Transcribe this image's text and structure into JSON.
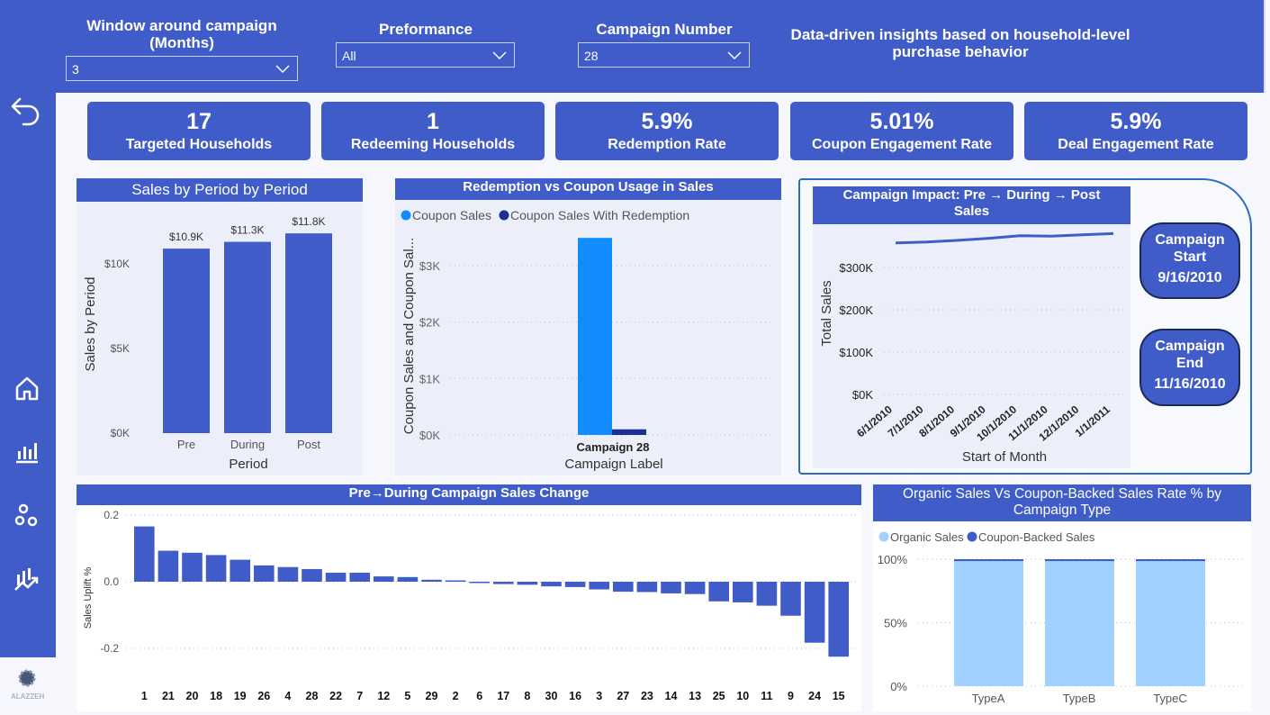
{
  "header": {
    "slicers": [
      {
        "label": "Window around campaign (Months)",
        "value": "3"
      },
      {
        "label": "Preformance",
        "value": "All"
      },
      {
        "label": "Campaign Number",
        "value": "28"
      }
    ],
    "tagline": "Data-driven insights based on household-level purchase behavior"
  },
  "sidebar": {
    "items": [
      {
        "icon": "back-arrow-icon"
      },
      {
        "icon": "home-icon"
      },
      {
        "icon": "bar-chart-icon"
      },
      {
        "icon": "circles-icon"
      },
      {
        "icon": "trend-chart-icon"
      }
    ],
    "logo_text": "ALAZZEH"
  },
  "kpis": [
    {
      "value": "17",
      "label": "Targeted Households"
    },
    {
      "value": "1",
      "label": "Redeeming Households"
    },
    {
      "value": "5.9%",
      "label": "Redemption Rate"
    },
    {
      "value": "5.01%",
      "label": "Coupon Engagement Rate"
    },
    {
      "value": "5.9%",
      "label": "Deal Engagement Rate"
    }
  ],
  "campaign_start": {
    "label": "Campaign Start",
    "date": "9/16/2010"
  },
  "campaign_end": {
    "label": "Campaign End",
    "date": "11/16/2010"
  },
  "colors": {
    "primary": "#405cc8",
    "panel": "#eceff9",
    "coupon": "#118dff",
    "redemption": "#1f2f99",
    "organic": "#a0d1ff"
  },
  "chart_data": [
    {
      "type": "bar",
      "title": "Sales by Period by Period",
      "xlabel": "Period",
      "ylabel": "Sales by Period",
      "categories": [
        "Pre",
        "During",
        "Post"
      ],
      "values": [
        10900,
        11300,
        11800
      ],
      "data_labels": [
        "$10.9K",
        "$11.3K",
        "$11.8K"
      ],
      "yticks": [
        "$0K",
        "$5K",
        "$10K"
      ],
      "ylim": [
        0,
        12500
      ]
    },
    {
      "type": "bar",
      "title": "Redemption vs Coupon Usage in Sales",
      "xlabel": "Campaign Label",
      "ylabel": "Coupon Sales and Coupon Sal...",
      "categories": [
        "Campaign 28"
      ],
      "series": [
        {
          "name": "Coupon Sales",
          "values": [
            3490
          ]
        },
        {
          "name": "Coupon Sales With Redemption",
          "values": [
            100
          ]
        }
      ],
      "yticks": [
        "$0K",
        "$1K",
        "$2K",
        "$3K"
      ],
      "ylim": [
        0,
        3800
      ],
      "legend": "top-left"
    },
    {
      "type": "line",
      "title": "Campaign Impact: Pre → During → Post Sales",
      "xlabel": "Start of Month",
      "ylabel": "Total Sales",
      "x": [
        "6/1/2010",
        "7/1/2010",
        "8/1/2010",
        "9/1/2010",
        "10/1/2010",
        "11/1/2010",
        "12/1/2010",
        "1/1/2011"
      ],
      "values": [
        358000,
        360000,
        364000,
        369000,
        375000,
        374000,
        377000,
        380000
      ],
      "yticks": [
        "$0K",
        "$100K",
        "$200K",
        "$300K"
      ],
      "ylim": [
        0,
        400000
      ]
    },
    {
      "type": "bar",
      "title": "Pre→During Campaign Sales Change",
      "ylabel": "Sales Uplift %",
      "categories": [
        "1",
        "21",
        "20",
        "18",
        "19",
        "26",
        "4",
        "28",
        "22",
        "7",
        "12",
        "5",
        "29",
        "2",
        "6",
        "17",
        "8",
        "30",
        "16",
        "3",
        "27",
        "23",
        "14",
        "13",
        "25",
        "10",
        "11",
        "9",
        "24",
        "15"
      ],
      "values": [
        0.166,
        0.093,
        0.087,
        0.08,
        0.066,
        0.049,
        0.044,
        0.038,
        0.027,
        0.027,
        0.016,
        0.014,
        0.006,
        0.004,
        -0.004,
        -0.007,
        -0.009,
        -0.014,
        -0.016,
        -0.023,
        -0.03,
        -0.031,
        -0.035,
        -0.037,
        -0.059,
        -0.062,
        -0.072,
        -0.102,
        -0.183,
        -0.225
      ],
      "yticks": [
        "-0.2",
        "0.0",
        "0.2"
      ],
      "ylim": [
        -0.2,
        0.2
      ]
    },
    {
      "type": "bar",
      "stacked": true,
      "title": "Organic Sales Vs Coupon-Backed Sales Rate % by Campaign Type",
      "categories": [
        "TypeA",
        "TypeB",
        "TypeC"
      ],
      "series": [
        {
          "name": "Organic Sales",
          "values": [
            98.5,
            98.5,
            98.5
          ]
        },
        {
          "name": "Coupon-Backed Sales",
          "values": [
            1.5,
            1.5,
            1.5
          ]
        }
      ],
      "yticks": [
        "0%",
        "50%",
        "100%"
      ],
      "ylim": [
        0,
        100
      ],
      "legend": "top-left"
    }
  ]
}
